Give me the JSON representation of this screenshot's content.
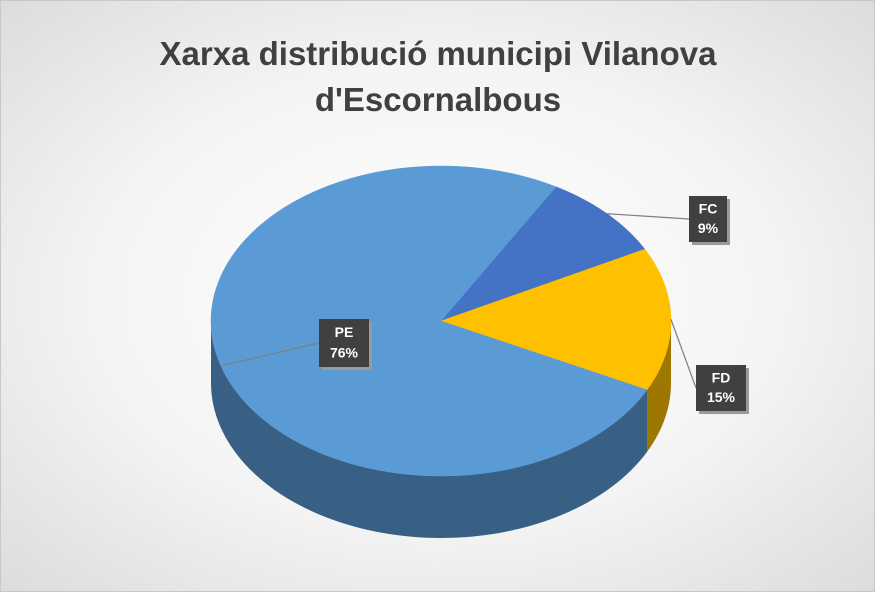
{
  "chart_data": {
    "type": "pie",
    "title": "Xarxa distribució municipi Vilanova d'Escornalbous",
    "categories": [
      "FC",
      "FD",
      "PE"
    ],
    "values": [
      9,
      15,
      76
    ],
    "value_labels": [
      "9%",
      "15%",
      "76%"
    ],
    "colors": [
      "#4472c4",
      "#ffc000",
      "#5b9bd5"
    ]
  }
}
